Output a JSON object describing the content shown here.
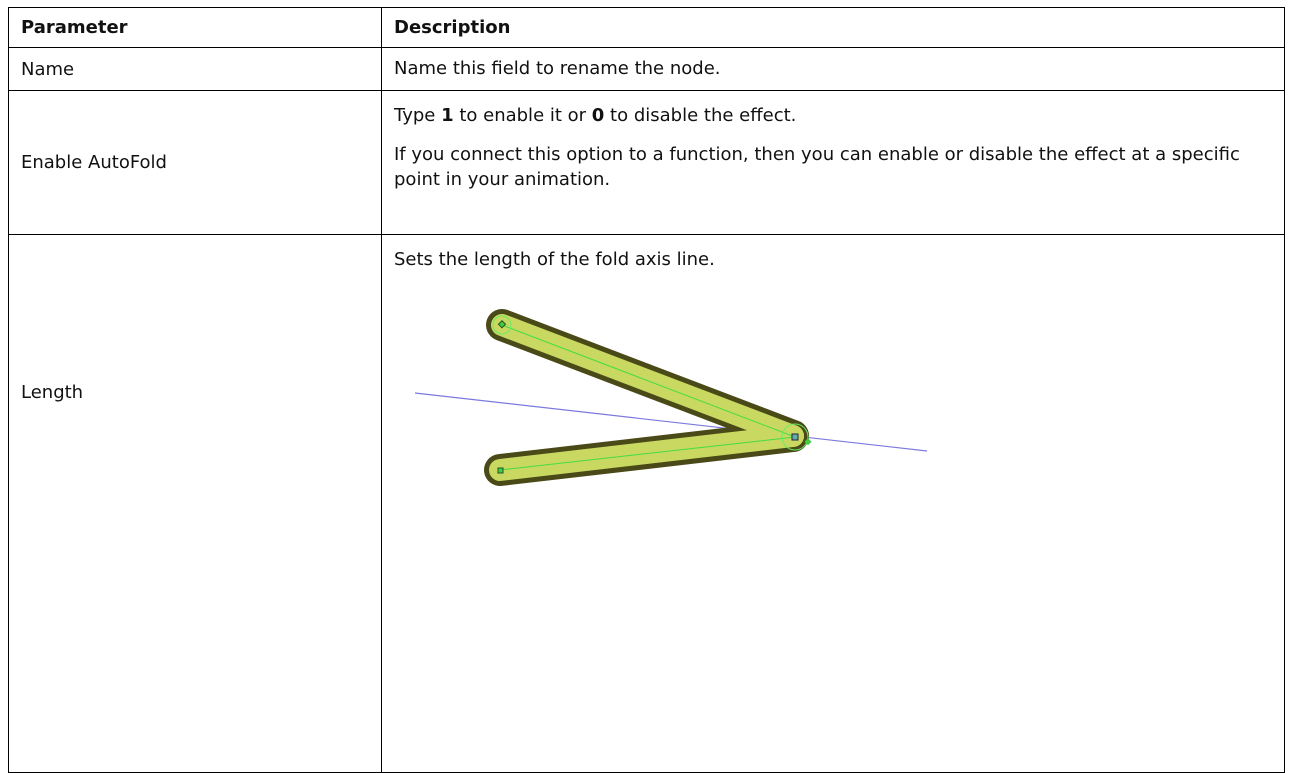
{
  "table": {
    "header": [
      "Parameter",
      "Description"
    ],
    "rows": [
      {
        "parameter": "Name",
        "description": [
          {
            "segments": [
              "Name this field to rename the node."
            ]
          }
        ]
      },
      {
        "parameter": "Enable AutoFold",
        "description": [
          {
            "segments": [
              "Type ",
              "1",
              " to enable it or ",
              "0",
              " to disable the effect."
            ]
          },
          {
            "segments": [
              "If you connect this option to a function, then you can enable or disable the effect at a specific point in your animation."
            ]
          }
        ]
      },
      {
        "parameter": "Length",
        "description": [
          {
            "segments": [
              "Sets the length of the fold axis line."
            ]
          }
        ]
      }
    ]
  }
}
